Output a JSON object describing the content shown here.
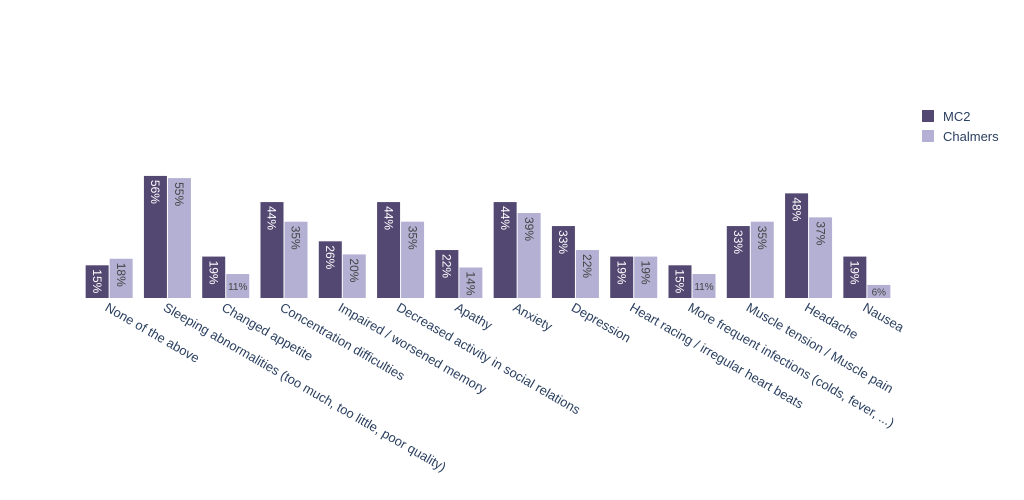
{
  "colors": {
    "mc2": "#524872",
    "chalmers": "#b3b0d3",
    "axis_text": "#2a3f5f",
    "inside_label": "#ffffff",
    "outside_label": "#444444"
  },
  "legend": {
    "items": [
      {
        "label": "MC2",
        "color": "#524872"
      },
      {
        "label": "Chalmers",
        "color": "#b3b0d3"
      }
    ]
  },
  "chart_data": {
    "type": "bar",
    "title": "",
    "xlabel": "",
    "ylabel": "",
    "ylim": [
      0,
      1
    ],
    "legend_position": "top-right",
    "grid": false,
    "categories": [
      "None of the above",
      "Sleeping abnormalities (too much, too little, poor quality)",
      "Changed appetite",
      "Concentration difficulties",
      "Impaired / worsened memory",
      "Decreased  activity in social relations",
      "Apathy",
      "Anxiety",
      "Depression",
      "Heart racing / irregular heart beats",
      "More frequent infections (colds, fever, ...)",
      "Muscle tension / Muscle pain",
      "Headache",
      "Nausea"
    ],
    "series": [
      {
        "name": "MC2",
        "values": [
          0.15,
          0.56,
          0.19,
          0.44,
          0.26,
          0.44,
          0.22,
          0.44,
          0.33,
          0.19,
          0.15,
          0.33,
          0.48,
          0.19
        ],
        "labels": [
          "15%",
          "56%",
          "19%",
          "44%",
          "26%",
          "44%",
          "22%",
          "44%",
          "33%",
          "19%",
          "15%",
          "33%",
          "48%",
          "19%"
        ]
      },
      {
        "name": "Chalmers",
        "values": [
          0.18,
          0.55,
          0.11,
          0.35,
          0.2,
          0.35,
          0.14,
          0.39,
          0.22,
          0.19,
          0.11,
          0.35,
          0.37,
          0.06
        ],
        "labels": [
          "18%",
          "55%",
          "11%",
          "35%",
          "20%",
          "35%",
          "14%",
          "39%",
          "22%",
          "19%",
          "11%",
          "35%",
          "37%",
          "6%"
        ]
      }
    ]
  }
}
